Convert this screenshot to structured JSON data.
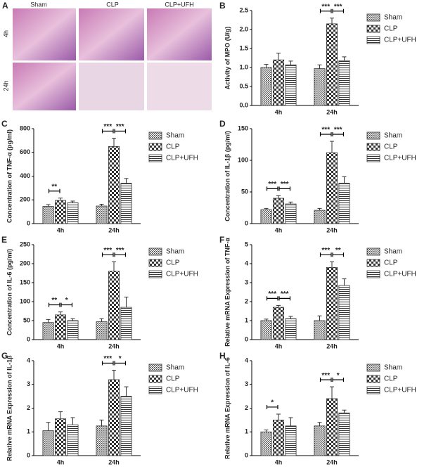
{
  "panel_a": {
    "label": "A",
    "columns": [
      "Sham",
      "CLP",
      "CLP+UFH"
    ],
    "rows": [
      "4h",
      "24h"
    ]
  },
  "chart_data": [
    {
      "type": "bar",
      "label": "B",
      "y_label": "Activity of MPO (U/g)",
      "categories": [
        "4h",
        "24h"
      ],
      "series": [
        {
          "name": "Sham",
          "pattern": "dots",
          "color": "#333333",
          "values": [
            1.0,
            0.97
          ],
          "errors": [
            0.08,
            0.1
          ]
        },
        {
          "name": "CLP",
          "pattern": "checker",
          "color": "#333333",
          "values": [
            1.2,
            2.15
          ],
          "errors": [
            0.18,
            0.15
          ]
        },
        {
          "name": "CLP+UFH",
          "pattern": "hlines",
          "color": "#333333",
          "values": [
            1.07,
            1.18
          ],
          "errors": [
            0.1,
            0.1
          ]
        }
      ],
      "significance": [
        [
          null,
          null
        ],
        [
          "***",
          "***"
        ]
      ],
      "ylim": [
        0,
        2.5
      ],
      "yticks": [
        {
          "value": 0,
          "label": "0.0"
        },
        0.5,
        {
          "value": 1,
          "label": "1.0"
        },
        1.5,
        {
          "value": 2,
          "label": "2.0"
        },
        2.5
      ]
    },
    {
      "type": "bar",
      "label": "C",
      "y_label": "Concentration of TNF-α  (pg/ml)",
      "categories": [
        "4h",
        "24h"
      ],
      "series": [
        {
          "name": "Sham",
          "pattern": "dots",
          "color": "#333333",
          "values": [
            145,
            148
          ],
          "errors": [
            15,
            15
          ]
        },
        {
          "name": "CLP",
          "pattern": "checker",
          "color": "#333333",
          "values": [
            195,
            650
          ],
          "errors": [
            20,
            70
          ]
        },
        {
          "name": "CLP+UFH",
          "pattern": "hlines",
          "color": "#333333",
          "values": [
            175,
            340
          ],
          "errors": [
            15,
            40
          ]
        }
      ],
      "significance": [
        [
          "**",
          null
        ],
        [
          "***",
          "***"
        ]
      ],
      "ylim": [
        0,
        800
      ],
      "yticks": [
        0,
        200,
        400,
        600,
        800
      ]
    },
    {
      "type": "bar",
      "label": "D",
      "y_label": "Concentration of IL-1β  (pg/ml)",
      "categories": [
        "4h",
        "24h"
      ],
      "series": [
        {
          "name": "Sham",
          "pattern": "dots",
          "color": "#333333",
          "values": [
            22,
            21
          ],
          "errors": [
            2,
            3
          ]
        },
        {
          "name": "CLP",
          "pattern": "checker",
          "color": "#333333",
          "values": [
            40,
            112
          ],
          "errors": [
            4,
            18
          ]
        },
        {
          "name": "CLP+UFH",
          "pattern": "hlines",
          "color": "#333333",
          "values": [
            31,
            64
          ],
          "errors": [
            3,
            10
          ]
        }
      ],
      "significance": [
        [
          "***",
          "***"
        ],
        [
          "***",
          "***"
        ]
      ],
      "ylim": [
        0,
        150
      ],
      "yticks": [
        0,
        50,
        100,
        150
      ]
    },
    {
      "type": "bar",
      "label": "E",
      "y_label": "Concentration of IL-6 (pg/ml)",
      "categories": [
        "4h",
        "24h"
      ],
      "series": [
        {
          "name": "Sham",
          "pattern": "dots",
          "color": "#333333",
          "values": [
            45,
            47
          ],
          "errors": [
            8,
            8
          ]
        },
        {
          "name": "CLP",
          "pattern": "checker",
          "color": "#333333",
          "values": [
            65,
            180
          ],
          "errors": [
            8,
            25
          ]
        },
        {
          "name": "CLP+UFH",
          "pattern": "hlines",
          "color": "#333333",
          "values": [
            50,
            85
          ],
          "errors": [
            5,
            27
          ]
        }
      ],
      "significance": [
        [
          "**",
          "*"
        ],
        [
          "***",
          "***"
        ]
      ],
      "ylim": [
        0,
        250
      ],
      "yticks": [
        0,
        50,
        100,
        150,
        200,
        250
      ]
    },
    {
      "type": "bar",
      "label": "F",
      "y_label": "Relative mRNA Expression of TNF-α",
      "categories": [
        "4h",
        "24h"
      ],
      "series": [
        {
          "name": "Sham",
          "pattern": "dots",
          "color": "#333333",
          "values": [
            1.0,
            1.0
          ],
          "errors": [
            0.08,
            0.25
          ]
        },
        {
          "name": "CLP",
          "pattern": "checker",
          "color": "#333333",
          "values": [
            1.7,
            3.8
          ],
          "errors": [
            0.1,
            0.3
          ]
        },
        {
          "name": "CLP+UFH",
          "pattern": "hlines",
          "color": "#333333",
          "values": [
            1.1,
            2.85
          ],
          "errors": [
            0.12,
            0.35
          ]
        }
      ],
      "significance": [
        [
          "***",
          "***"
        ],
        [
          "***",
          "**"
        ]
      ],
      "ylim": [
        0,
        5
      ],
      "yticks": [
        0,
        1,
        2,
        3,
        4,
        5
      ]
    },
    {
      "type": "bar",
      "label": "G",
      "y_label": "Relative mRNA Expression of IL-1β",
      "categories": [
        "4h",
        "24h"
      ],
      "series": [
        {
          "name": "Sham",
          "pattern": "dots",
          "color": "#333333",
          "values": [
            1.05,
            1.25
          ],
          "errors": [
            0.35,
            0.25
          ]
        },
        {
          "name": "CLP",
          "pattern": "checker",
          "color": "#333333",
          "values": [
            1.55,
            3.2
          ],
          "errors": [
            0.3,
            0.4
          ]
        },
        {
          "name": "CLP+UFH",
          "pattern": "hlines",
          "color": "#333333",
          "values": [
            1.3,
            2.5
          ],
          "errors": [
            0.3,
            0.4
          ]
        }
      ],
      "significance": [
        [
          null,
          null
        ],
        [
          "***",
          "*"
        ]
      ],
      "ylim": [
        0,
        4
      ],
      "yticks": [
        0,
        1,
        2,
        3,
        4
      ]
    },
    {
      "type": "bar",
      "label": "H",
      "y_label": "Relative mRNA Expression of IL-6",
      "categories": [
        "4h",
        "24h"
      ],
      "series": [
        {
          "name": "Sham",
          "pattern": "dots",
          "color": "#333333",
          "values": [
            1.0,
            1.25
          ],
          "errors": [
            0.08,
            0.15
          ]
        },
        {
          "name": "CLP",
          "pattern": "checker",
          "color": "#333333",
          "values": [
            1.5,
            2.4
          ],
          "errors": [
            0.25,
            0.5
          ]
        },
        {
          "name": "CLP+UFH",
          "pattern": "hlines",
          "color": "#333333",
          "values": [
            1.25,
            1.8
          ],
          "errors": [
            0.35,
            0.12
          ]
        }
      ],
      "significance": [
        [
          "*",
          null
        ],
        [
          "***",
          "*"
        ]
      ],
      "ylim": [
        0,
        4
      ],
      "yticks": [
        0,
        1,
        2,
        3,
        4
      ]
    }
  ]
}
